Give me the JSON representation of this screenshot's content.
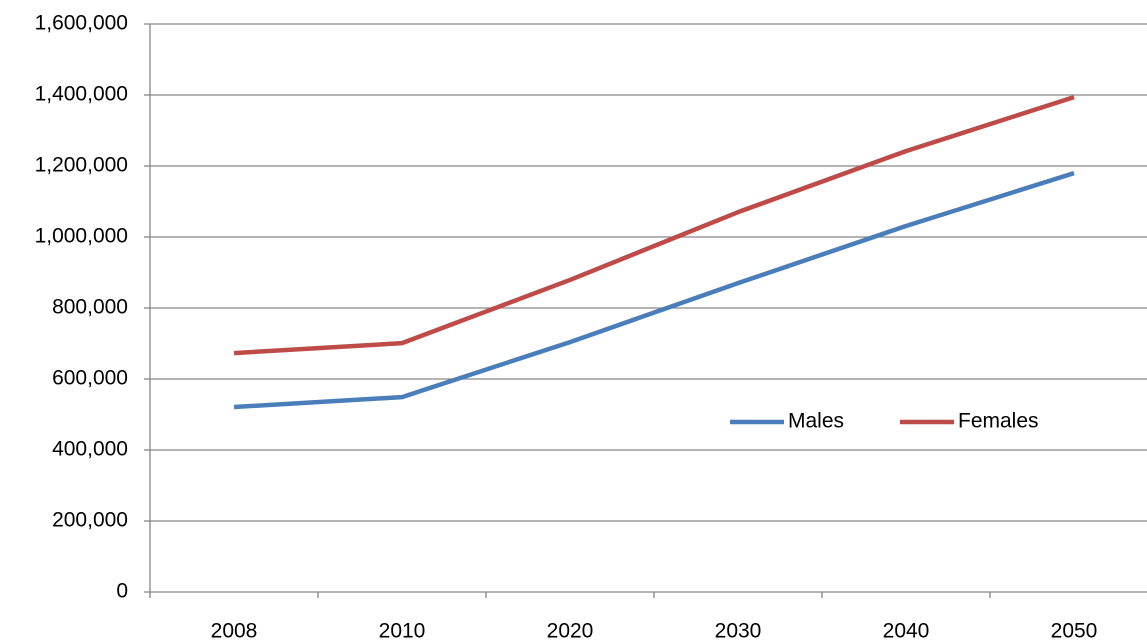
{
  "chart_data": {
    "type": "line",
    "categories": [
      "2008",
      "2010",
      "2020",
      "2030",
      "2040",
      "2050"
    ],
    "series": [
      {
        "name": "Males",
        "color": "#4a7ebb",
        "values": [
          521000,
          549000,
          704000,
          870000,
          1031000,
          1180000
        ]
      },
      {
        "name": "Females",
        "color": "#be4b48",
        "values": [
          673000,
          701000,
          879000,
          1070000,
          1242000,
          1394000
        ]
      }
    ],
    "ylim": [
      0,
      1600000
    ],
    "yticks": [
      0,
      {
        "value": 200000,
        "label": "200,000"
      },
      {
        "value": 400000,
        "label": "400,000"
      },
      {
        "value": 600000,
        "label": "600,000"
      },
      {
        "value": 800000,
        "label": "800,000"
      },
      {
        "value": 1000000,
        "label": "1,000,000"
      },
      {
        "value": 1200000,
        "label": "1,200,000"
      },
      {
        "value": 1400000,
        "label": "1,400,000"
      },
      {
        "value": 1600000,
        "label": "1,600,000"
      }
    ],
    "grid": true
  }
}
